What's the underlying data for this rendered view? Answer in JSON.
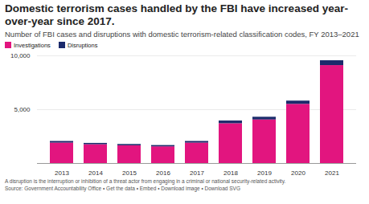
{
  "chart_data": {
    "type": "bar",
    "stacked": true,
    "title": "Domestic terrorism cases handled by the FBI have increased year-over-year since 2017.",
    "subtitle": "Number of FBI cases and disruptions with domestic terrorism-related classification codes, FY 2013–2021",
    "note": "A disruption is the interruption or inhibition of a threat actor from engaging in a criminal or national security-related activity.",
    "source": "Source: Government Accountability Office • Get the data • Embed • Download image • Download SVG",
    "categories": [
      "2013",
      "2014",
      "2015",
      "2016",
      "2017",
      "2018",
      "2019",
      "2020",
      "2021"
    ],
    "series": [
      {
        "name": "Investigations",
        "color": "#e2157f",
        "values": [
          1900,
          1750,
          1650,
          1550,
          1900,
          3700,
          4050,
          5500,
          9100
        ]
      },
      {
        "name": "Disruptions",
        "color": "#1b2a6b",
        "values": [
          150,
          120,
          120,
          120,
          150,
          250,
          250,
          300,
          450
        ]
      }
    ],
    "ylim": [
      0,
      10000
    ],
    "yticks": [
      {
        "value": 5000,
        "label": "5,000"
      },
      {
        "value": 10000,
        "label": "10,000"
      }
    ],
    "grid": true,
    "legend": "top-left"
  }
}
